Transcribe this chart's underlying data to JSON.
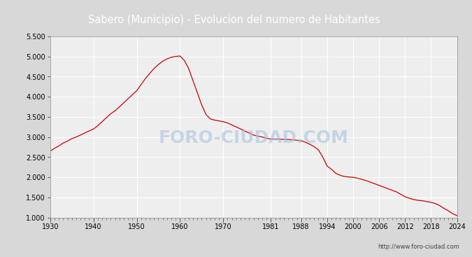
{
  "title": "Sabero (Municipio) - Evolucion del numero de Habitantes",
  "title_bg_color": "#4a86c8",
  "title_text_color": "white",
  "bg_color": "#d8d8d8",
  "plot_bg_color": "#eeeeee",
  "line_color": "#cc0000",
  "watermark": "FORO-CIUDAD.COM",
  "url": "http://www.foro-ciudad.com",
  "xlim": [
    1930,
    2024
  ],
  "ylim": [
    1000,
    5500
  ],
  "yticks": [
    1000,
    1500,
    2000,
    2500,
    3000,
    3500,
    4000,
    4500,
    5000,
    5500
  ],
  "ytick_labels": [
    "1.000",
    "1.500",
    "2.000",
    "2.500",
    "3.000",
    "3.500",
    "4.000",
    "4.500",
    "5.000",
    "5.500"
  ],
  "xtick_labels": [
    "1930",
    "1940",
    "1950",
    "1960",
    "1970",
    "1981",
    "1988",
    "1994",
    "2000",
    "2006",
    "2012",
    "2018",
    "2024"
  ],
  "xtick_positions": [
    1930,
    1940,
    1950,
    1960,
    1970,
    1981,
    1988,
    1994,
    2000,
    2006,
    2012,
    2018,
    2024
  ],
  "years": [
    1930,
    1931,
    1932,
    1933,
    1934,
    1935,
    1936,
    1937,
    1938,
    1939,
    1940,
    1941,
    1942,
    1943,
    1944,
    1945,
    1946,
    1947,
    1948,
    1949,
    1950,
    1951,
    1952,
    1953,
    1954,
    1955,
    1956,
    1957,
    1958,
    1959,
    1960,
    1961,
    1962,
    1963,
    1964,
    1965,
    1966,
    1967,
    1968,
    1969,
    1970,
    1971,
    1972,
    1973,
    1974,
    1975,
    1976,
    1977,
    1978,
    1979,
    1980,
    1981,
    1982,
    1983,
    1984,
    1985,
    1986,
    1987,
    1988,
    1989,
    1990,
    1991,
    1992,
    1993,
    1994,
    1995,
    1996,
    1997,
    1998,
    1999,
    2000,
    2001,
    2002,
    2003,
    2004,
    2005,
    2006,
    2007,
    2008,
    2009,
    2010,
    2011,
    2012,
    2013,
    2014,
    2015,
    2016,
    2017,
    2018,
    2019,
    2020,
    2021,
    2022,
    2023,
    2024
  ],
  "population": [
    2650,
    2720,
    2780,
    2850,
    2900,
    2960,
    3000,
    3050,
    3100,
    3150,
    3200,
    3280,
    3380,
    3480,
    3580,
    3650,
    3750,
    3850,
    3950,
    4050,
    4150,
    4300,
    4450,
    4580,
    4700,
    4800,
    4880,
    4940,
    4980,
    5000,
    5010,
    4900,
    4700,
    4400,
    4100,
    3800,
    3560,
    3450,
    3420,
    3400,
    3380,
    3350,
    3300,
    3250,
    3200,
    3150,
    3100,
    3050,
    3020,
    3000,
    2970,
    2950,
    2950,
    2950,
    2940,
    2940,
    2930,
    2920,
    2910,
    2870,
    2820,
    2760,
    2680,
    2500,
    2280,
    2200,
    2100,
    2050,
    2020,
    2010,
    2000,
    1980,
    1950,
    1920,
    1880,
    1840,
    1800,
    1760,
    1720,
    1680,
    1640,
    1580,
    1520,
    1480,
    1450,
    1430,
    1420,
    1400,
    1380,
    1350,
    1300,
    1230,
    1170,
    1100,
    1050
  ]
}
